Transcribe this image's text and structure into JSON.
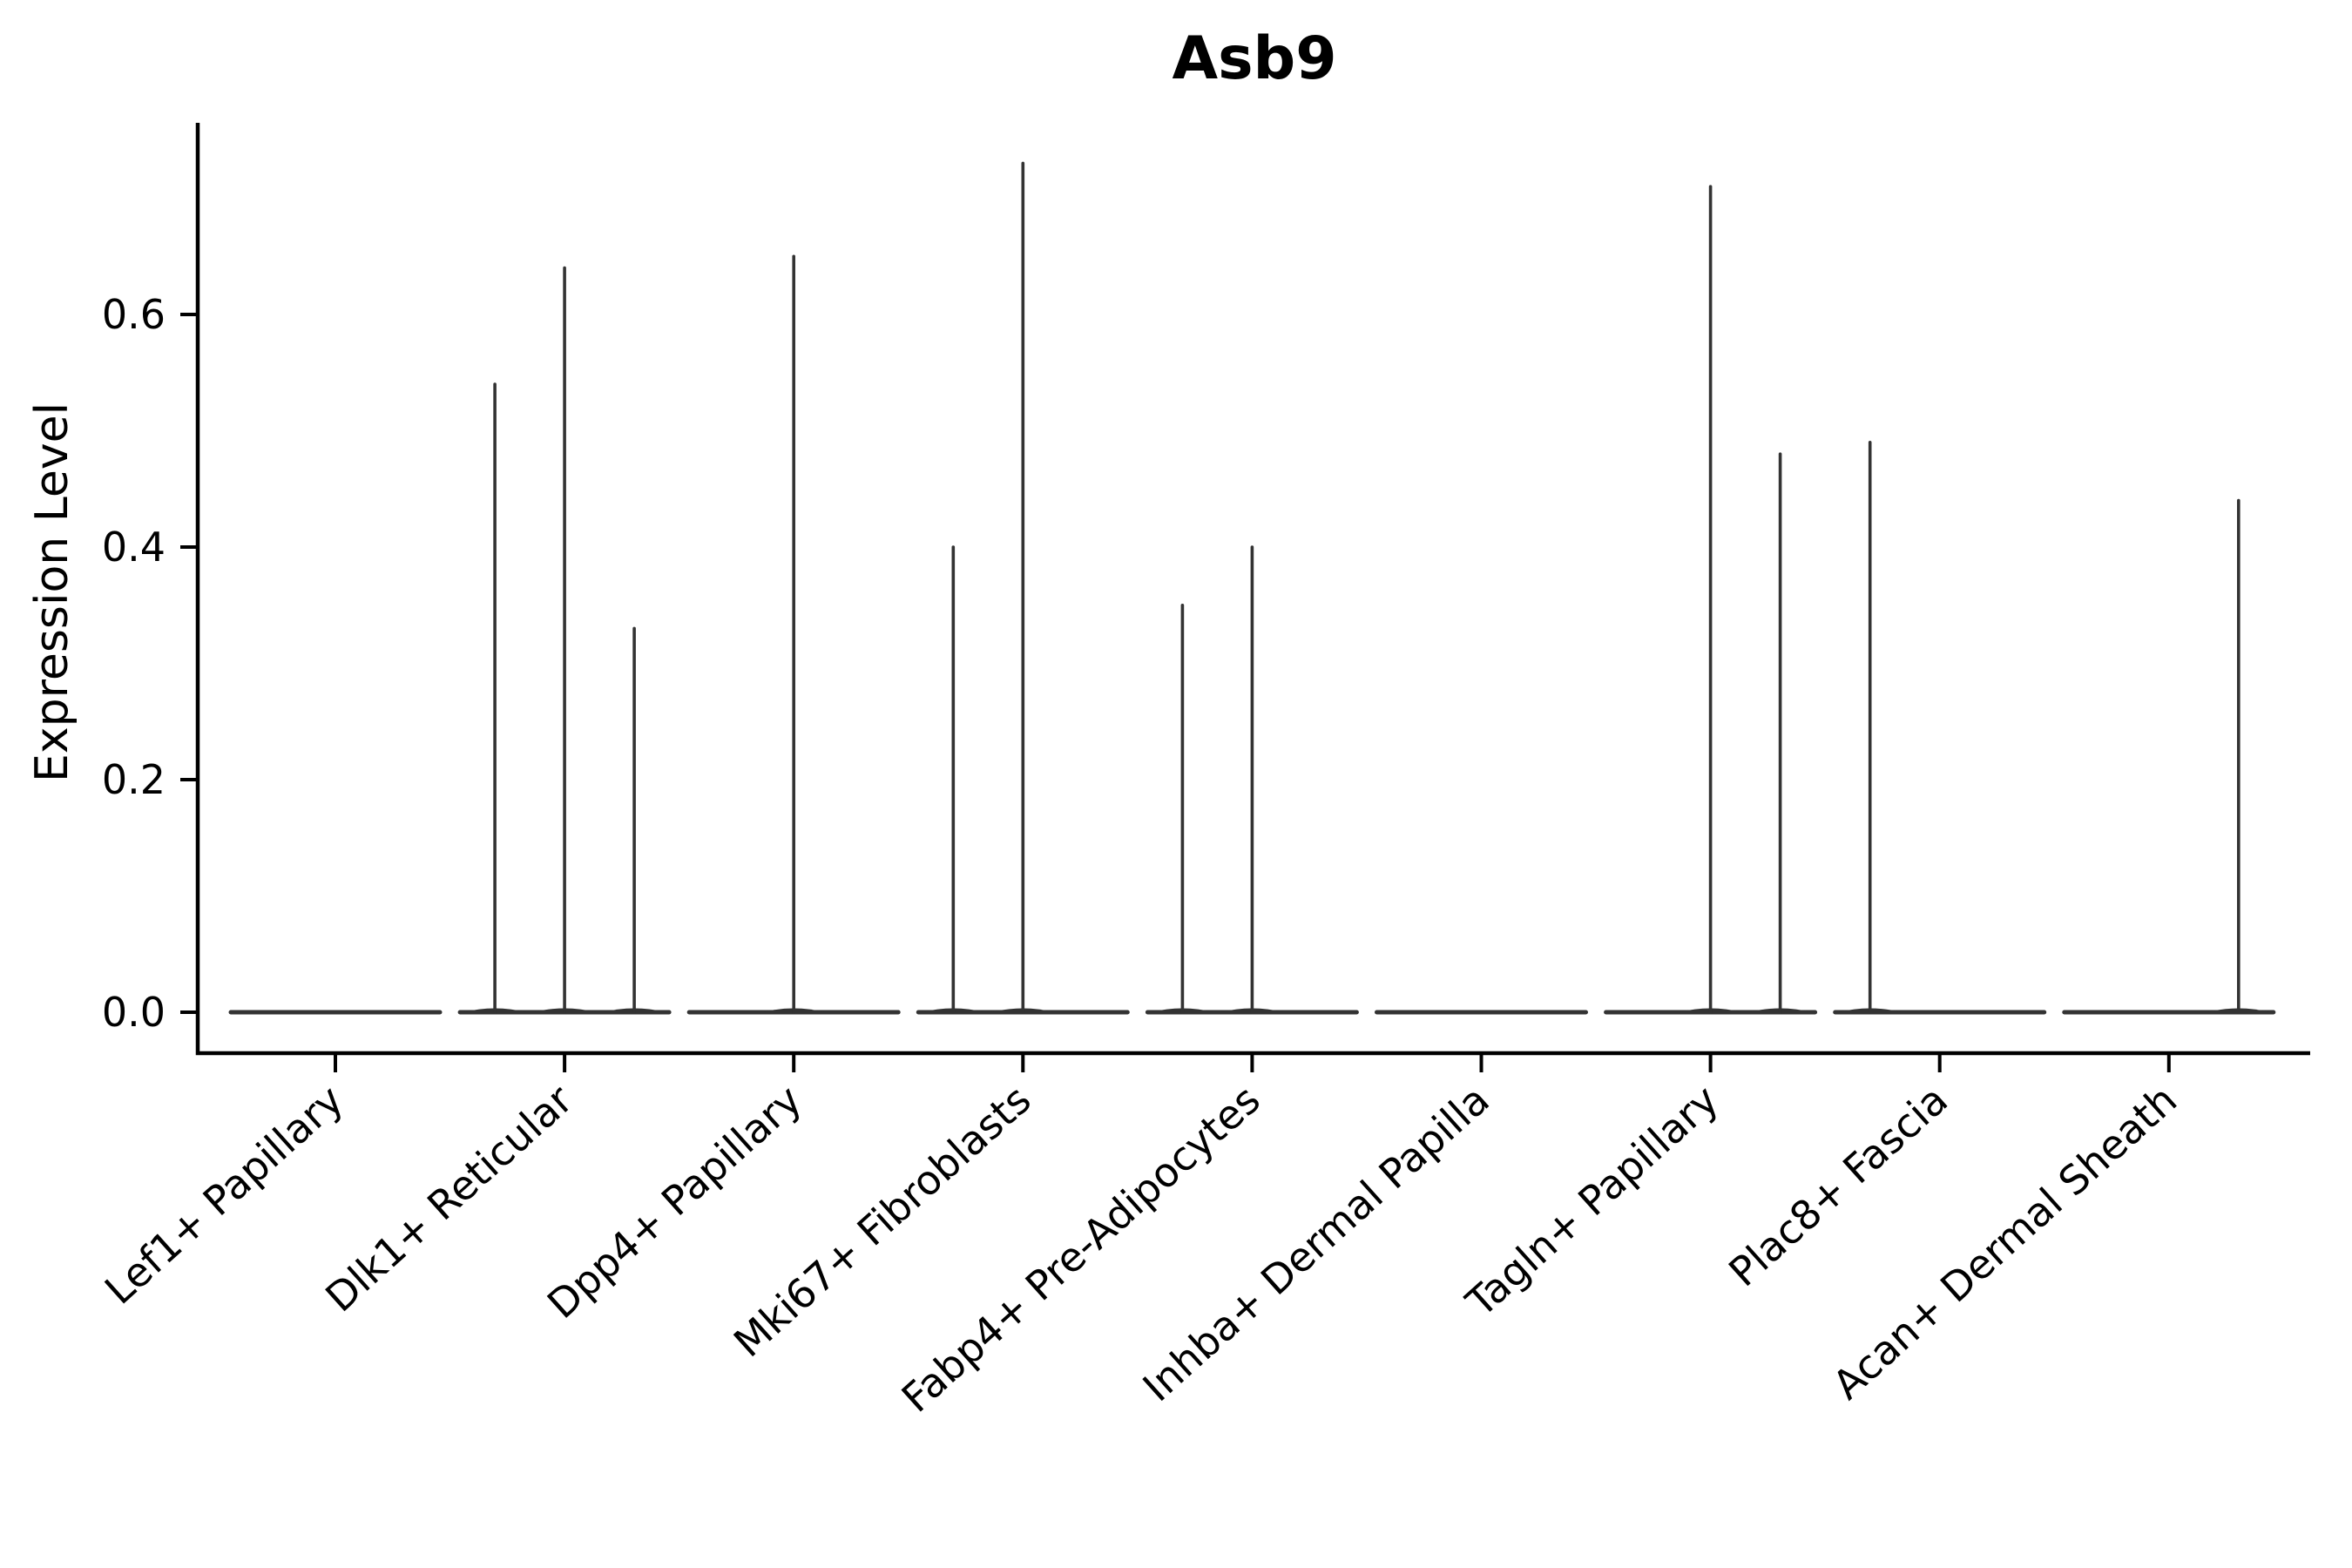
{
  "chart_data": {
    "type": "violin",
    "title": "Asb9",
    "ylabel": "Expression Level",
    "xlabel": "",
    "ylim": [
      -0.036,
      0.764
    ],
    "yticks": [
      0.0,
      0.2,
      0.4,
      0.6
    ],
    "grid": false,
    "legend": null,
    "violins_per_category": 3,
    "categories": [
      "Lef1+ Papillary",
      "Dlk1+ Reticular",
      "Dpp4+ Papillary",
      "Mki67+ Fibroblasts",
      "Fabp4+ Pre-Adipocytes",
      "Inhba+ Dermal Papilla",
      "Tagln+ Papillary",
      "Plac8+ Fascia",
      "Acan+ Dermal Sheath"
    ],
    "series": [
      {
        "category": "Lef1+ Papillary",
        "max_expression": [
          0,
          0,
          0
        ]
      },
      {
        "category": "Dlk1+ Reticular",
        "max_expression": [
          0.54,
          0.64,
          0.33
        ]
      },
      {
        "category": "Dpp4+ Papillary",
        "max_expression": [
          0,
          0.65,
          0
        ]
      },
      {
        "category": "Mki67+ Fibroblasts",
        "max_expression": [
          0.4,
          0.73,
          0
        ]
      },
      {
        "category": "Fabp4+ Pre-Adipocytes",
        "max_expression": [
          0.35,
          0.4,
          0
        ]
      },
      {
        "category": "Inhba+ Dermal Papilla",
        "max_expression": [
          0,
          0,
          0
        ]
      },
      {
        "category": "Tagln+ Papillary",
        "max_expression": [
          0,
          0.71,
          0.48
        ]
      },
      {
        "category": "Plac8+ Fascia",
        "max_expression": [
          0.49,
          0,
          0
        ]
      },
      {
        "category": "Acan+ Dermal Sheath",
        "max_expression": [
          0,
          0,
          0.44
        ]
      }
    ],
    "colors": {
      "violin": "#333333",
      "axis": "#000000",
      "text": "#000000",
      "background": "#ffffff"
    }
  }
}
